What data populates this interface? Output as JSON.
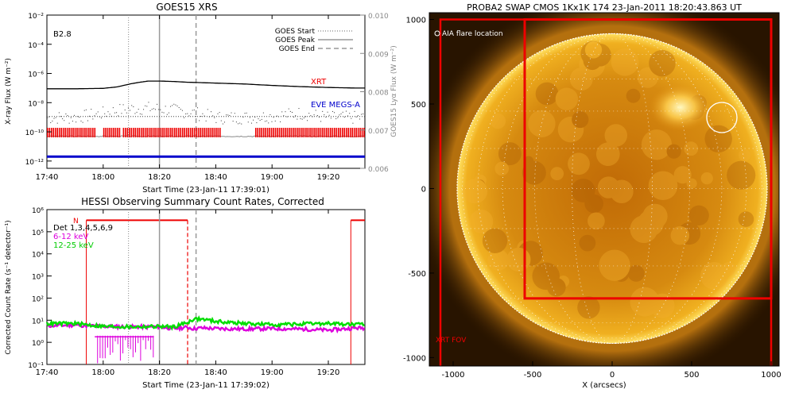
{
  "chart_data": [
    {
      "type": "line",
      "title": "GOES15 XRS",
      "xlabel": "Start Time (23-Jan-11 17:39:01)",
      "ylabel": "X-ray Flux (W m⁻²)",
      "ylabel_right": "GOES15 Lyα Flux (W m⁻²)",
      "x_ticks": [
        "17:40",
        "18:00",
        "18:20",
        "18:40",
        "19:00",
        "19:20"
      ],
      "x_tick_minutes": [
        0,
        20,
        40,
        60,
        80,
        100
      ],
      "xlim_minutes": [
        0,
        113
      ],
      "y_ticks": [
        "10⁻²",
        "10⁻⁴",
        "10⁻⁶",
        "10⁻⁸",
        "10⁻¹⁰",
        "10⁻¹²"
      ],
      "y_tick_exponents": [
        -2,
        -4,
        -6,
        -8,
        -10,
        -12
      ],
      "ylim_log10": [
        -12.5,
        -2
      ],
      "y2_ticks": [
        "0.010",
        "0.009",
        "0.008",
        "0.007",
        "0.006"
      ],
      "y2_tick_values": [
        0.01,
        0.009,
        0.008,
        0.007,
        0.006
      ],
      "y2lim": [
        0.006,
        0.01
      ],
      "flare_class": "B2.8",
      "legend": [
        "GOES Start",
        "GOES Peak",
        "GOES End"
      ],
      "event_minutes": {
        "start": 29,
        "peak": 40,
        "end": 53
      },
      "labels": {
        "xrt": "XRT",
        "eve": "EVE MEGS-A"
      },
      "colors": {
        "xrt": "#ee0000",
        "eve": "#0000cc",
        "flux": "#000000",
        "lya": "#888888"
      },
      "xrs_long_log10": {
        "minutes": [
          0,
          10,
          20,
          25,
          30,
          33,
          36,
          40,
          45,
          50,
          55,
          60,
          70,
          80,
          90,
          100,
          110,
          113
        ],
        "values": [
          -7.05,
          -7.05,
          -7.02,
          -6.92,
          -6.7,
          -6.6,
          -6.52,
          -6.52,
          -6.55,
          -6.6,
          -6.63,
          -6.66,
          -6.72,
          -6.82,
          -6.9,
          -6.96,
          -7.0,
          -7.0
        ]
      },
      "xrs_short_log10": {
        "minutes": [
          0,
          10,
          20,
          25,
          30,
          35,
          40,
          45,
          50,
          55,
          60,
          70,
          80,
          90,
          100,
          113
        ],
        "values": [
          -8.9,
          -8.9,
          -8.6,
          -8.4,
          -8.3,
          -8.25,
          -8.3,
          -8.4,
          -8.5,
          -8.7,
          -8.9,
          -8.9,
          -8.8,
          -8.6,
          -8.9,
          -8.9
        ]
      },
      "lya_log10_level": -10.3,
      "xrt_coverage_minutes": [
        [
          0,
          17
        ],
        [
          20,
          26
        ],
        [
          27,
          62
        ],
        [
          74,
          113
        ]
      ],
      "eve_log10_level": -11.7
    },
    {
      "type": "line",
      "title": "HESSI Observing Summary Count Rates, Corrected",
      "xlabel": "Start Time (23-Jan-11 17:39:02)",
      "ylabel": "Corrected Count Rate (s⁻¹ detector⁻¹)",
      "x_ticks": [
        "17:40",
        "18:00",
        "18:20",
        "18:40",
        "19:00",
        "19:20"
      ],
      "x_tick_minutes": [
        0,
        20,
        40,
        60,
        80,
        100
      ],
      "xlim_minutes": [
        0,
        113
      ],
      "y_ticks": [
        "10⁶",
        "10⁵",
        "10⁴",
        "10³",
        "10²",
        "10¹",
        "10⁰",
        "10⁻¹"
      ],
      "y_tick_exponents": [
        6,
        5,
        4,
        3,
        2,
        1,
        0,
        -1
      ],
      "ylim_log10": [
        -1,
        6
      ],
      "legend": [
        "Det 1,3,4,5,6,9",
        "6-12 keV",
        "12-25 keV"
      ],
      "night_marker": "N",
      "event_minutes": {
        "start": 29,
        "peak": 40,
        "end": 53
      },
      "red_box_minutes": [
        [
          14,
          50
        ],
        [
          108,
          113
        ]
      ],
      "colors": {
        "low": "#dd00dd",
        "high": "#00dd00",
        "box": "#ee0000"
      },
      "series": [
        {
          "name": "6-12 keV",
          "minutes": [
            0,
            10,
            20,
            30,
            40,
            45,
            50,
            52,
            55,
            60,
            70,
            80,
            90,
            100,
            110,
            113
          ],
          "values_log10": [
            0.75,
            0.78,
            0.72,
            0.7,
            0.7,
            0.62,
            0.68,
            0.62,
            0.65,
            0.62,
            0.6,
            0.62,
            0.6,
            0.55,
            0.65,
            0.65
          ]
        },
        {
          "name": "12-25 keV",
          "minutes": [
            0,
            10,
            20,
            30,
            40,
            45,
            50,
            52,
            55,
            60,
            70,
            80,
            90,
            100,
            110,
            113
          ],
          "values_log10": [
            0.85,
            0.85,
            0.72,
            0.7,
            0.72,
            0.7,
            0.9,
            1.05,
            1.05,
            0.95,
            0.85,
            0.8,
            0.82,
            0.85,
            0.8,
            0.8
          ]
        }
      ]
    },
    {
      "type": "heatmap",
      "title": "PROBA2 SWAP CMOS 1Kx1K 174 23-Jan-2011 18:20:43.863 UT",
      "xlabel": "X (arcsecs)",
      "ylabel": "",
      "x_ticks": [
        "-1000",
        "-500",
        "0",
        "500",
        "1000"
      ],
      "x_tick_values": [
        -1000,
        -500,
        0,
        500,
        1000
      ],
      "y_ticks": [
        "1000",
        "500",
        "0",
        "-500",
        "-1000"
      ],
      "y_tick_values": [
        1000,
        500,
        0,
        -500,
        -1000
      ],
      "xlim": [
        -1150,
        1050
      ],
      "ylim": [
        -1050,
        1040
      ],
      "solar_radius_arcsec": 975,
      "aia_flare_label": "AIA flare location",
      "aia_flare_center": [
        690,
        420
      ],
      "aia_flare_radius": 95,
      "xrt_fov_label": "XRT FOV",
      "xrt_fov_box": [
        [
          -1080,
          -1060,
          1000,
          1000
        ],
        [
          -550,
          -650,
          1000,
          1000
        ]
      ],
      "active_region_center": [
        430,
        480
      ],
      "colors": {
        "sun": "#f0a818",
        "bg": "#281400",
        "fov": "#ee0000"
      }
    }
  ]
}
